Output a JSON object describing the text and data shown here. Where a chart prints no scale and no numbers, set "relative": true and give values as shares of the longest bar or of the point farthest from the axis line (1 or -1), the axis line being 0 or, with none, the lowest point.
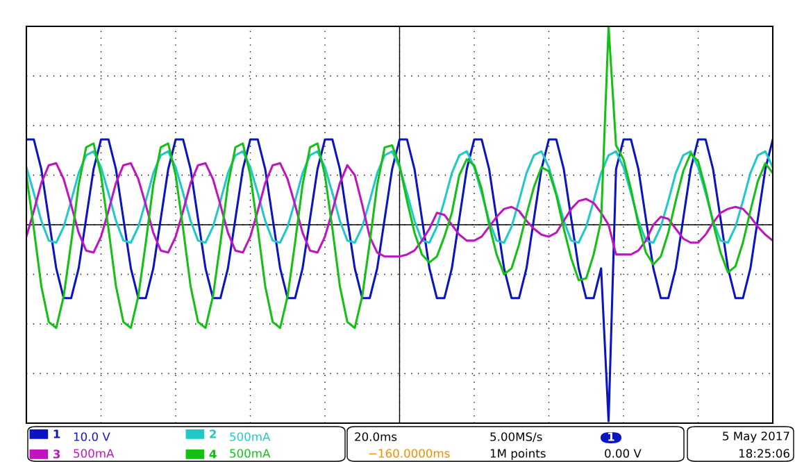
{
  "chart_data": {
    "type": "line",
    "relative": true,
    "grid": true,
    "legend": "bottom",
    "categories": [
      null,
      null,
      null,
      null,
      null,
      null,
      null,
      null,
      null,
      null,
      null,
      null,
      null,
      null,
      null,
      null,
      null,
      null,
      null,
      null,
      null,
      null,
      null,
      null,
      null,
      null,
      null,
      null,
      null,
      null,
      null,
      null,
      null,
      null,
      null,
      null,
      null,
      null,
      null,
      null,
      null,
      null,
      null,
      null,
      null,
      null,
      null,
      null,
      null,
      null,
      null,
      null,
      null,
      null,
      null,
      null,
      null,
      null,
      null,
      null,
      null,
      null,
      null,
      null,
      null,
      null,
      null,
      null,
      null,
      null,
      null,
      null,
      null,
      null,
      null,
      null,
      null,
      null,
      null,
      null,
      null,
      null,
      null,
      null,
      null,
      null,
      null,
      null,
      null,
      null,
      null,
      null,
      null,
      null,
      null,
      null,
      null,
      null,
      null,
      null,
      null
    ],
    "series": [
      {
        "name": "1",
        "color": "#0a14c0",
        "values": [
          0.43,
          0.43,
          0.28,
          0.03,
          -0.22,
          -0.37,
          -0.37,
          -0.22,
          0.03,
          0.28,
          0.43,
          0.43,
          0.28,
          0.03,
          -0.22,
          -0.37,
          -0.37,
          -0.22,
          0.03,
          0.28,
          0.43,
          0.43,
          0.28,
          0.03,
          -0.22,
          -0.37,
          -0.37,
          -0.22,
          0.03,
          0.28,
          0.43,
          0.43,
          0.28,
          0.03,
          -0.22,
          -0.37,
          -0.37,
          -0.22,
          0.03,
          0.28,
          0.43,
          0.43,
          0.28,
          0.03,
          -0.22,
          -0.37,
          -0.37,
          -0.22,
          0.03,
          0.28,
          0.43,
          0.43,
          0.28,
          0.03,
          -0.22,
          -0.37,
          -0.37,
          -0.22,
          0.03,
          0.28,
          0.43,
          0.43,
          0.28,
          0.03,
          -0.22,
          -0.37,
          -0.37,
          -0.22,
          0.03,
          0.28,
          0.43,
          0.43,
          0.28,
          0.03,
          -0.22,
          -0.37,
          -0.37,
          -0.22,
          -0.99,
          0.28,
          0.43,
          0.43,
          0.28,
          0.03,
          -0.22,
          -0.37,
          -0.37,
          -0.22,
          0.03,
          0.28,
          0.43,
          0.43,
          0.28,
          0.03,
          -0.22,
          -0.37,
          -0.37,
          -0.22,
          0.03,
          0.28,
          0.43
        ]
      },
      {
        "name": "2",
        "color": "#20c8c8",
        "values": [
          0.29,
          0.16,
          0.02,
          -0.08,
          -0.09,
          -0.01,
          0.12,
          0.26,
          0.35,
          0.37,
          0.29,
          0.16,
          0.02,
          -0.08,
          -0.09,
          -0.01,
          0.12,
          0.26,
          0.35,
          0.37,
          0.29,
          0.16,
          0.02,
          -0.08,
          -0.09,
          -0.01,
          0.12,
          0.26,
          0.35,
          0.37,
          0.29,
          0.16,
          0.02,
          -0.08,
          -0.09,
          -0.01,
          0.12,
          0.26,
          0.35,
          0.37,
          0.29,
          0.16,
          0.02,
          -0.08,
          -0.09,
          -0.01,
          0.12,
          0.26,
          0.35,
          0.37,
          0.29,
          0.16,
          0.02,
          -0.08,
          -0.09,
          -0.01,
          0.12,
          0.26,
          0.35,
          0.37,
          0.29,
          0.16,
          0.02,
          -0.08,
          -0.09,
          -0.01,
          0.12,
          0.26,
          0.35,
          0.37,
          0.29,
          0.16,
          0.02,
          -0.08,
          -0.09,
          -0.01,
          0.12,
          0.26,
          0.35,
          0.37,
          0.29,
          0.16,
          0.02,
          -0.08,
          -0.09,
          -0.01,
          0.12,
          0.26,
          0.35,
          0.37,
          0.29,
          0.16,
          0.02,
          -0.08,
          -0.09,
          -0.01,
          0.12,
          0.26,
          0.35,
          0.37,
          0.29
        ]
      },
      {
        "name": "3",
        "color": "#c014c0",
        "values": [
          -0.06,
          0.07,
          0.21,
          0.3,
          0.31,
          0.23,
          0.1,
          -0.04,
          -0.13,
          -0.14,
          -0.06,
          0.07,
          0.21,
          0.3,
          0.31,
          0.23,
          0.1,
          -0.04,
          -0.13,
          -0.14,
          -0.06,
          0.07,
          0.21,
          0.3,
          0.31,
          0.23,
          0.1,
          -0.04,
          -0.13,
          -0.14,
          -0.06,
          0.07,
          0.21,
          0.3,
          0.31,
          0.23,
          0.1,
          -0.04,
          -0.13,
          -0.14,
          -0.06,
          0.07,
          0.21,
          0.3,
          0.25,
          0.1,
          -0.06,
          -0.14,
          -0.16,
          -0.16,
          -0.16,
          -0.15,
          -0.13,
          -0.08,
          -0.02,
          0.06,
          0.05,
          0.0,
          -0.05,
          -0.08,
          -0.08,
          -0.06,
          -0.01,
          0.04,
          0.08,
          0.09,
          0.07,
          0.02,
          -0.02,
          -0.05,
          -0.06,
          -0.04,
          0.02,
          0.08,
          0.12,
          0.13,
          0.11,
          0.06,
          0.0,
          -0.15,
          -0.15,
          -0.15,
          -0.13,
          -0.08,
          0.0,
          0.04,
          0.03,
          -0.02,
          -0.07,
          -0.09,
          -0.09,
          -0.05,
          0.01,
          0.06,
          0.08,
          0.09,
          0.08,
          0.04,
          -0.01,
          -0.05,
          -0.08
        ]
      },
      {
        "name": "4",
        "color": "#14c014",
        "values": [
          0.25,
          -0.02,
          -0.31,
          -0.49,
          -0.52,
          -0.36,
          -0.09,
          0.2,
          0.39,
          0.41,
          0.25,
          -0.02,
          -0.31,
          -0.49,
          -0.52,
          -0.36,
          -0.09,
          0.2,
          0.39,
          0.41,
          0.25,
          -0.02,
          -0.31,
          -0.49,
          -0.52,
          -0.36,
          -0.09,
          0.2,
          0.39,
          0.41,
          0.25,
          -0.02,
          -0.31,
          -0.49,
          -0.52,
          -0.36,
          -0.09,
          0.2,
          0.39,
          0.41,
          0.25,
          -0.02,
          -0.31,
          -0.49,
          -0.52,
          -0.36,
          -0.09,
          0.2,
          0.39,
          0.4,
          0.3,
          0.12,
          -0.04,
          -0.15,
          -0.19,
          -0.16,
          -0.06,
          0.06,
          0.25,
          0.33,
          0.3,
          0.18,
          0.0,
          -0.15,
          -0.25,
          -0.22,
          -0.1,
          0.05,
          0.19,
          0.29,
          0.27,
          0.15,
          -0.02,
          -0.17,
          -0.28,
          -0.27,
          -0.15,
          0.02,
          1.0,
          0.4,
          0.33,
          0.18,
          0.0,
          -0.14,
          -0.2,
          -0.16,
          -0.04,
          0.12,
          0.27,
          0.36,
          0.32,
          0.18,
          0.01,
          -0.14,
          -0.24,
          -0.21,
          -0.09,
          0.07,
          0.22,
          0.31,
          0.26
        ]
      }
    ],
    "annotations": [
      "10.0 V",
      "500mA",
      "500mA",
      "500mA",
      "20.0ms",
      "5.00MS/s",
      "−160.0000ms",
      "1M points",
      "1",
      "0.00 V",
      "5 May 2017",
      "18:25:06"
    ]
  }
}
